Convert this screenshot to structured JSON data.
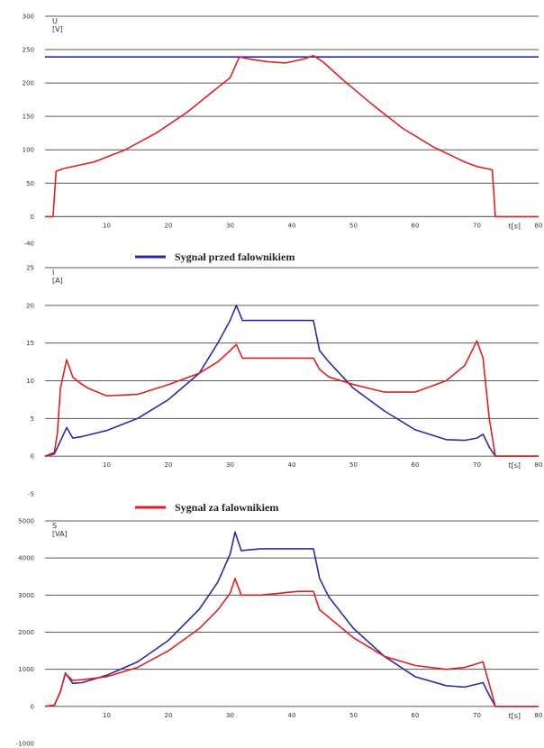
{
  "legend": [
    {
      "label": "Sygnał przed falownikiem",
      "color": "#2b2ba6"
    },
    {
      "label": "Sygnał za falownikiem",
      "color": "#e02020"
    }
  ],
  "chart_data": [
    {
      "type": "line",
      "ylabel": "U",
      "yunit": "[V]",
      "xlabel": "t[s]",
      "xlim": [
        0,
        80
      ],
      "ylim": [
        -40,
        300
      ],
      "yticks": [
        -40,
        0,
        50,
        100,
        150,
        200,
        250,
        300
      ],
      "xticks": [
        10,
        20,
        30,
        40,
        50,
        60,
        70,
        80
      ],
      "grid": true,
      "series": [
        {
          "name": "Sygnał przed falownikiem",
          "color": "#2b2ba6",
          "x": [
            0,
            20,
            40,
            60,
            80
          ],
          "y": [
            239,
            239,
            239,
            239,
            239
          ]
        },
        {
          "name": "Sygnał za falownikiem",
          "color": "#e02020",
          "x": [
            0,
            1.3,
            1.8,
            3,
            8,
            13,
            18,
            23,
            27,
            30,
            31.5,
            33,
            36,
            39,
            42,
            43.5,
            45,
            48,
            53,
            58,
            63,
            68,
            70,
            71.5,
            72.5,
            73,
            80
          ],
          "y": [
            0,
            0,
            68,
            72,
            82,
            100,
            125,
            156,
            186,
            208,
            239,
            236,
            232,
            230,
            236,
            241,
            232,
            207,
            168,
            132,
            104,
            82,
            75,
            72,
            70,
            0,
            0
          ]
        }
      ]
    },
    {
      "type": "line",
      "ylabel": "I",
      "yunit": "[A]",
      "xlabel": "t[s]",
      "xlim": [
        0,
        80
      ],
      "ylim": [
        -5,
        25
      ],
      "yticks": [
        -5,
        0,
        5,
        10,
        15,
        20,
        25
      ],
      "xticks": [
        10,
        20,
        30,
        40,
        50,
        60,
        70,
        80
      ],
      "grid": true,
      "series": [
        {
          "name": "Sygnał przed falownikiem",
          "color": "#2b2ba6",
          "x": [
            0,
            1.5,
            2.5,
            3.5,
            4.5,
            6,
            10,
            15,
            20,
            25,
            28,
            30,
            31,
            32,
            35,
            38,
            41,
            43.5,
            44.5,
            46,
            50,
            55,
            60,
            65,
            68,
            70,
            71,
            72,
            73,
            80
          ],
          "y": [
            0,
            0.3,
            2,
            3.8,
            2.4,
            2.6,
            3.4,
            5,
            7.5,
            11,
            15,
            18,
            20,
            18,
            18,
            18,
            18,
            18,
            14,
            12.5,
            9,
            6,
            3.5,
            2.2,
            2.1,
            2.4,
            2.9,
            1.2,
            0,
            0
          ]
        },
        {
          "name": "Sygnał za falownikiem",
          "color": "#e02020",
          "x": [
            0,
            1.5,
            2,
            2.5,
            3.5,
            4.5,
            5.5,
            7,
            10,
            15,
            20,
            25,
            28,
            30,
            31,
            32,
            35,
            38,
            41,
            43.5,
            44.5,
            46,
            50,
            55,
            60,
            65,
            68,
            70,
            71,
            72,
            73,
            80
          ],
          "y": [
            0,
            0.5,
            3,
            9,
            12.8,
            10.5,
            9.8,
            9,
            8,
            8.2,
            9.5,
            11,
            12.5,
            14,
            14.8,
            13,
            13,
            13,
            13,
            13,
            11.5,
            10.5,
            9.5,
            8.5,
            8.5,
            10,
            12,
            15.3,
            13,
            5,
            0,
            0
          ]
        }
      ]
    },
    {
      "type": "line",
      "ylabel": "S",
      "yunit": "[VA]",
      "xlabel": "t[s]",
      "xlim": [
        0,
        80
      ],
      "ylim": [
        -1000,
        5000
      ],
      "yticks": [
        -1000,
        0,
        1000,
        2000,
        3000,
        4000,
        5000
      ],
      "xticks": [
        10,
        20,
        30,
        40,
        50,
        60,
        70,
        80
      ],
      "grid": true,
      "series": [
        {
          "name": "Sygnał przed falownikiem",
          "color": "#2b2ba6",
          "x": [
            0,
            1.5,
            2.5,
            3.3,
            4.5,
            6,
            10,
            15,
            20,
            25,
            28,
            30,
            30.8,
            31.8,
            35,
            38,
            41,
            43.5,
            44.5,
            46,
            50,
            55,
            60,
            65,
            68,
            70,
            71,
            72,
            73,
            80
          ],
          "y": [
            0,
            30,
            400,
            900,
            620,
            640,
            840,
            1200,
            1780,
            2620,
            3350,
            4100,
            4700,
            4200,
            4250,
            4250,
            4250,
            4250,
            3450,
            2950,
            2100,
            1350,
            800,
            560,
            520,
            600,
            640,
            300,
            0,
            0
          ]
        },
        {
          "name": "Sygnał za falownikiem",
          "color": "#e02020",
          "x": [
            0,
            1.5,
            2.5,
            3.3,
            4.5,
            6,
            10,
            15,
            20,
            25,
            28,
            30,
            30.8,
            31.8,
            35,
            38,
            41,
            43.5,
            44.5,
            46,
            50,
            55,
            60,
            65,
            68,
            70,
            71,
            72,
            73,
            80
          ],
          "y": [
            0,
            30,
            400,
            880,
            700,
            720,
            800,
            1050,
            1500,
            2100,
            2600,
            3050,
            3450,
            3000,
            3000,
            3050,
            3100,
            3100,
            2600,
            2400,
            1850,
            1350,
            1100,
            1000,
            1050,
            1150,
            1200,
            600,
            0,
            0
          ]
        }
      ]
    }
  ]
}
